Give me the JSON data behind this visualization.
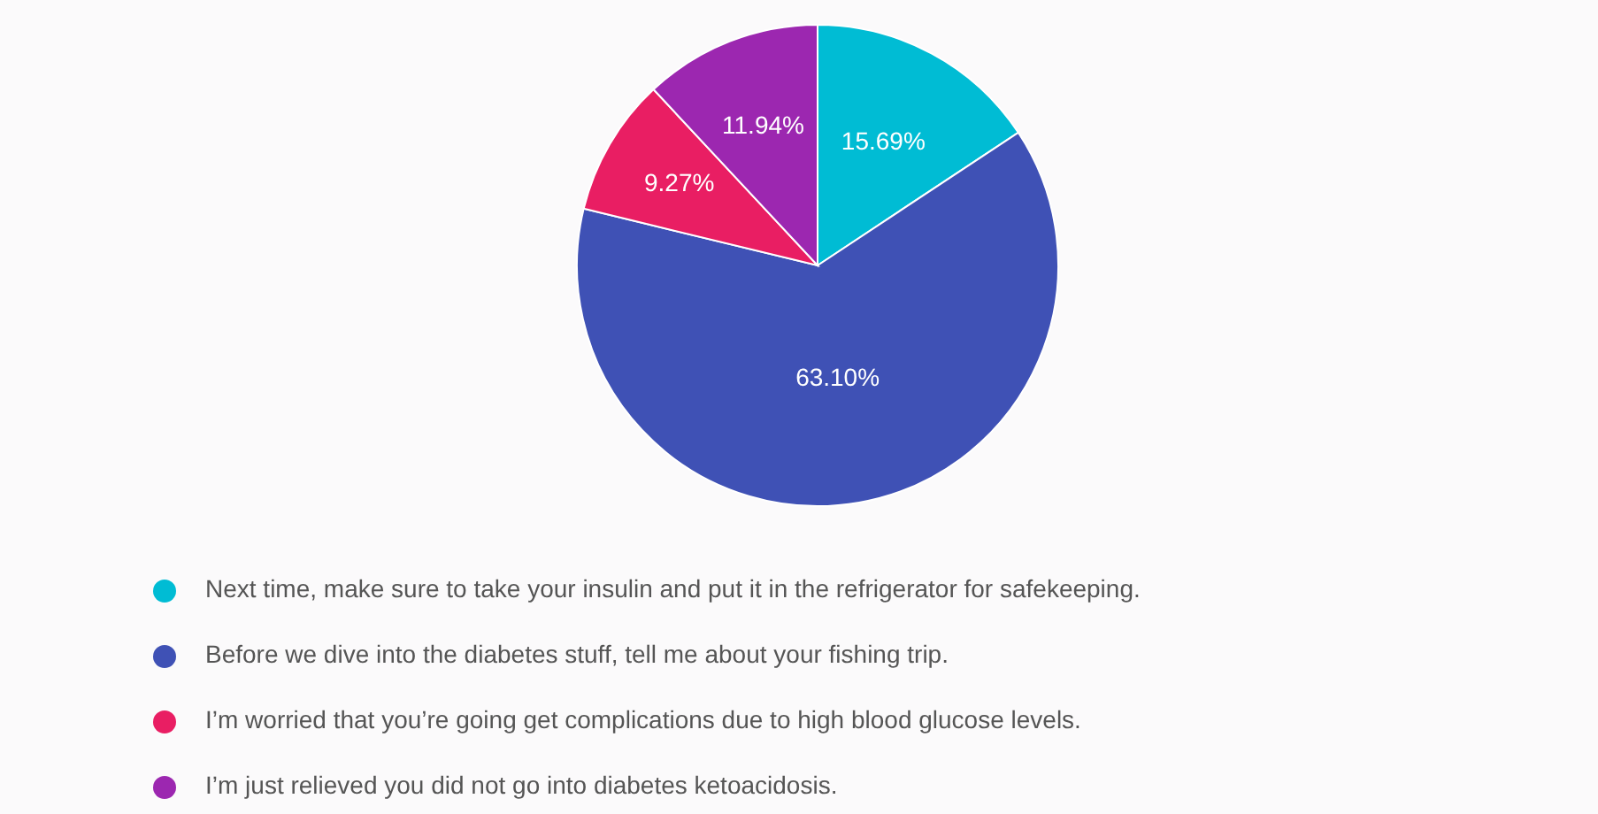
{
  "chart_data": {
    "type": "pie",
    "categories": [
      "Next time, make sure to take your insulin and put it in the refrigerator for safekeeping.",
      "Before we dive into the diabetes stuff, tell me about your fishing trip.",
      "I’m worried that you’re going get complications due to high blood glucose levels.",
      "I’m just relieved you did not go into diabetes ketoacidosis."
    ],
    "values": [
      15.69,
      63.1,
      9.27,
      11.94
    ],
    "value_labels": [
      "15.69%",
      "63.10%",
      "9.27%",
      "11.94%"
    ],
    "colors": [
      "#00bcd4",
      "#3f51b5",
      "#e91e63",
      "#9c27b0"
    ],
    "legend": "bottom"
  }
}
